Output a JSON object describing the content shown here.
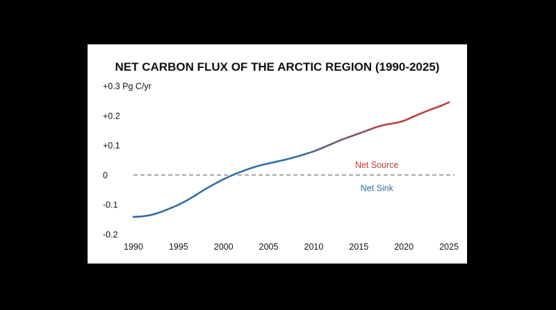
{
  "chart_data": {
    "type": "line",
    "title": "NET CARBON FLUX OF THE ARCTIC REGION (1990-2025)",
    "xlabel": "",
    "ylabel": "",
    "y_unit_label": "+0.3 Pg C/yr",
    "xlim": [
      1990,
      2025
    ],
    "ylim": [
      -0.2,
      0.3
    ],
    "x_ticks": [
      1990,
      1995,
      2000,
      2005,
      2010,
      2015,
      2020,
      2025
    ],
    "x_tick_labels": [
      "1990",
      "1995",
      "2000",
      "2005",
      "2010",
      "2015",
      "2020",
      "2025"
    ],
    "y_ticks": [
      -0.2,
      -0.1,
      0,
      0.1,
      0.2,
      0.3
    ],
    "y_tick_labels": [
      "-0.2",
      "-0.1",
      "0",
      "+0.1",
      "+0.2",
      "+0.3 Pg C/yr"
    ],
    "grid": false,
    "legend": "none",
    "series": [
      {
        "x": [
          1990,
          1991,
          1992,
          1993,
          1994,
          1995,
          1996,
          1997,
          1998,
          1999,
          2000,
          2001,
          2002,
          2003,
          2004,
          2005,
          2006,
          2007,
          2008,
          2009,
          2010,
          2011,
          2012,
          2013,
          2014,
          2015,
          2016,
          2017,
          2018,
          2019,
          2020,
          2021,
          2022,
          2023,
          2024,
          2025
        ],
        "values": [
          -0.141,
          -0.139,
          -0.134,
          -0.125,
          -0.113,
          -0.1,
          -0.084,
          -0.066,
          -0.047,
          -0.03,
          -0.014,
          0.0,
          0.012,
          0.023,
          0.032,
          0.039,
          0.046,
          0.053,
          0.061,
          0.07,
          0.08,
          0.092,
          0.105,
          0.118,
          0.129,
          0.14,
          0.151,
          0.162,
          0.17,
          0.175,
          0.183,
          0.196,
          0.209,
          0.221,
          0.232,
          0.245
        ],
        "gradient": [
          "#2e6fa5",
          "#c03a3a"
        ]
      }
    ],
    "reference_line": {
      "y": 0,
      "style": "dashed",
      "color": "#777777"
    },
    "annotations": [
      {
        "text": "Net Source",
        "x": 2017,
        "y": 0.035,
        "color": "#c0392b"
      },
      {
        "text": "Net Sink",
        "x": 2017,
        "y": -0.043,
        "color": "#2e6fa5"
      }
    ]
  }
}
